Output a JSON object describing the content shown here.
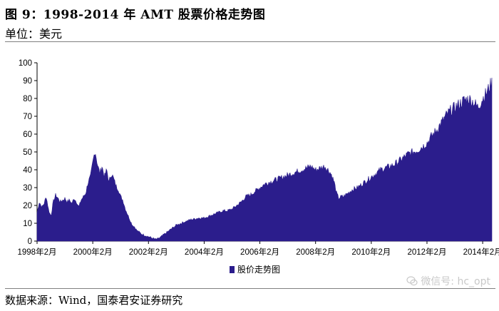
{
  "header": {
    "title": "图 9：1998-2014 年 AMT 股票价格走势图",
    "unit": "单位：美元"
  },
  "footer": {
    "source": "数据来源：Wind，国泰君安证券研究"
  },
  "watermark": {
    "text": "微信号: hc_opt",
    "icon": "wechat-icon"
  },
  "colors": {
    "series": "#2b1d8c",
    "axis": "#000000",
    "rule": "#808080",
    "watermark": "#c8c8c8"
  },
  "chart_data": {
    "type": "area",
    "title": "",
    "xlabel": "",
    "ylabel": "",
    "ylim": [
      0,
      100
    ],
    "yticks": [
      0,
      10,
      20,
      30,
      40,
      50,
      60,
      70,
      80,
      90,
      100
    ],
    "xlim": [
      1998.0,
      2014.33
    ],
    "xticks": [
      {
        "x": 1998.0,
        "label": "1998年2月"
      },
      {
        "x": 2000.0,
        "label": "2000年2月"
      },
      {
        "x": 2002.0,
        "label": "2002年2月"
      },
      {
        "x": 2004.0,
        "label": "2004年2月"
      },
      {
        "x": 2006.0,
        "label": "2006年2月"
      },
      {
        "x": 2008.0,
        "label": "2008年2月"
      },
      {
        "x": 2010.0,
        "label": "2010年2月"
      },
      {
        "x": 2012.0,
        "label": "2012年2月"
      },
      {
        "x": 2014.0,
        "label": "2014年2月"
      }
    ],
    "legend_position": "bottom-left",
    "series": [
      {
        "name": "股价走势图",
        "x": [
          1998.0,
          1998.08,
          1998.17,
          1998.25,
          1998.33,
          1998.42,
          1998.5,
          1998.58,
          1998.67,
          1998.75,
          1998.83,
          1998.92,
          1999.0,
          1999.08,
          1999.17,
          1999.25,
          1999.33,
          1999.42,
          1999.5,
          1999.58,
          1999.67,
          1999.75,
          1999.83,
          1999.92,
          2000.0,
          2000.08,
          2000.17,
          2000.25,
          2000.33,
          2000.42,
          2000.5,
          2000.58,
          2000.67,
          2000.75,
          2000.83,
          2000.92,
          2001.0,
          2001.08,
          2001.17,
          2001.25,
          2001.33,
          2001.42,
          2001.5,
          2001.58,
          2001.67,
          2001.75,
          2001.83,
          2001.92,
          2002.0,
          2002.08,
          2002.17,
          2002.25,
          2002.33,
          2002.42,
          2002.5,
          2002.58,
          2002.67,
          2002.75,
          2002.83,
          2002.92,
          2003.0,
          2003.17,
          2003.33,
          2003.5,
          2003.67,
          2003.83,
          2004.0,
          2004.17,
          2004.33,
          2004.5,
          2004.67,
          2004.83,
          2005.0,
          2005.17,
          2005.33,
          2005.5,
          2005.67,
          2005.83,
          2006.0,
          2006.17,
          2006.33,
          2006.5,
          2006.67,
          2006.83,
          2007.0,
          2007.17,
          2007.33,
          2007.5,
          2007.67,
          2007.83,
          2008.0,
          2008.17,
          2008.33,
          2008.5,
          2008.58,
          2008.67,
          2008.75,
          2008.83,
          2008.92,
          2009.0,
          2009.17,
          2009.33,
          2009.5,
          2009.67,
          2009.83,
          2010.0,
          2010.17,
          2010.33,
          2010.5,
          2010.67,
          2010.83,
          2011.0,
          2011.17,
          2011.33,
          2011.5,
          2011.67,
          2011.83,
          2012.0,
          2012.17,
          2012.33,
          2012.5,
          2012.67,
          2012.83,
          2013.0,
          2013.17,
          2013.33,
          2013.5,
          2013.67,
          2013.83,
          2014.0,
          2014.08,
          2014.17,
          2014.25,
          2014.33
        ],
        "values": [
          16,
          22,
          19,
          21,
          25,
          17,
          14,
          22,
          26,
          24,
          22,
          23,
          24,
          22,
          23,
          21,
          24,
          22,
          19,
          23,
          25,
          27,
          33,
          36,
          44,
          51,
          43,
          38,
          42,
          36,
          40,
          33,
          38,
          35,
          31,
          29,
          25,
          23,
          18,
          15,
          12,
          9,
          8,
          6,
          5,
          4,
          3.5,
          3,
          2.5,
          2,
          1.5,
          1,
          1.2,
          2,
          3,
          4,
          5,
          6,
          7,
          8,
          9,
          10,
          11,
          12,
          12.5,
          13,
          13,
          14,
          15,
          16,
          17,
          17,
          18,
          20,
          22,
          25,
          26,
          28,
          30,
          32,
          33,
          34,
          35,
          36,
          37,
          38,
          39,
          40,
          41,
          42,
          40,
          41,
          42,
          39,
          37,
          33,
          27,
          24,
          25,
          25,
          27,
          29,
          30,
          32,
          34,
          36,
          38,
          40,
          41,
          42,
          43,
          45,
          47,
          49,
          50,
          51,
          53,
          55,
          59,
          62,
          66,
          70,
          73,
          75,
          77,
          79,
          80,
          78,
          75,
          80,
          82,
          84,
          87,
          89
        ]
      }
    ]
  }
}
